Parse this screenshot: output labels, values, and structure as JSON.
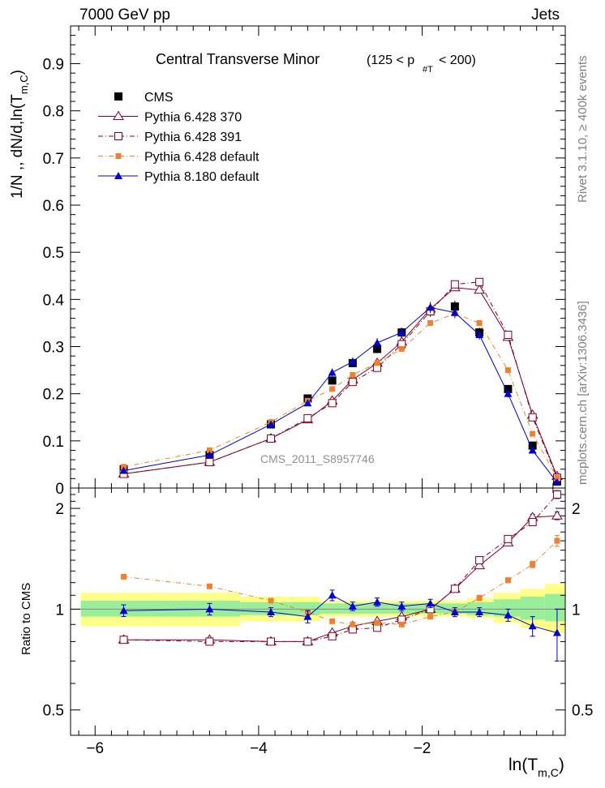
{
  "header": {
    "energy_label": "7000 GeV pp",
    "process_label": "Jets"
  },
  "side_labels": {
    "rivet_info": "Rivet 3.1.10, ≥ 400k events",
    "mcplots_info": "mcplots.cern.ch [arXiv:1306.3436]"
  },
  "chart_data": {
    "type": "line",
    "title": "Central Transverse Minor",
    "title_cut": "(125 < p",
    "title_cut_sub": "#T",
    "title_cut_end": " < 200)",
    "analysis_id": "CMS_2011_S8957746",
    "xlabel": "ln(T",
    "xlabel_sub": "m,C",
    "xlabel_end": ")",
    "ylabel_main": "1/N ,, dN/d,ln(T",
    "ylabel_main_sub": "m,C",
    "ylabel_main_end": ")",
    "ylabel_ratio": "Ratio to CMS",
    "xlim": [
      -6.3,
      -0.25
    ],
    "ylim_main": [
      0,
      0.98
    ],
    "ylim_ratio": [
      0.42,
      2.3
    ],
    "ratio_log_scale": true,
    "x_ticks": [
      -6,
      -4,
      -2
    ],
    "x_tick_labels": [
      "−6",
      "−4",
      "−2"
    ],
    "y_ticks_main": [
      0,
      0.1,
      0.2,
      0.3,
      0.4,
      0.5,
      0.6,
      0.7,
      0.8,
      0.9
    ],
    "y_tick_labels_main": [
      "0",
      "0.1",
      "0.2",
      "0.3",
      "0.4",
      "0.5",
      "0.6",
      "0.7",
      "0.8",
      "0.9"
    ],
    "y_ticks_ratio": [
      0.5,
      1,
      2
    ],
    "y_tick_labels_ratio": [
      "0.5",
      "1",
      "2"
    ],
    "legend_placement": "top-left",
    "x": [
      -5.65,
      -4.6,
      -3.85,
      -3.4,
      -3.1,
      -2.85,
      -2.55,
      -2.25,
      -1.9,
      -1.6,
      -1.3,
      -0.95,
      -0.65,
      -0.35
    ],
    "band_outer": {
      "color": "#ffff88",
      "lo": [
        0.89,
        0.89,
        0.92,
        0.92,
        0.95,
        0.95,
        0.95,
        0.95,
        0.95,
        0.95,
        0.94,
        0.91,
        0.88,
        0.85
      ],
      "hi": [
        1.12,
        1.12,
        1.09,
        1.09,
        1.06,
        1.06,
        1.06,
        1.06,
        1.06,
        1.06,
        1.08,
        1.12,
        1.15,
        1.19
      ]
    },
    "band_inner": {
      "color": "#99ee99",
      "lo": [
        0.95,
        0.95,
        0.96,
        0.96,
        0.97,
        0.97,
        0.97,
        0.97,
        0.97,
        0.97,
        0.96,
        0.95,
        0.93,
        0.92
      ],
      "hi": [
        1.06,
        1.06,
        1.05,
        1.05,
        1.04,
        1.04,
        1.04,
        1.04,
        1.04,
        1.04,
        1.05,
        1.07,
        1.09,
        1.11
      ]
    },
    "series": [
      {
        "name": "CMS",
        "color": "#000000",
        "marker": "filled-square",
        "line": "none",
        "values": [
          0.04,
          0.07,
          0.135,
          0.19,
          0.228,
          0.265,
          0.295,
          0.33,
          0.375,
          0.385,
          0.33,
          0.21,
          0.09,
          0.015
        ],
        "errors": [
          0.003,
          0.004,
          0.005,
          0.006,
          0.007,
          0.008,
          0.009,
          0.01,
          0.012,
          0.012,
          0.01,
          0.008,
          0.005,
          0.003
        ],
        "ratio": [
          1,
          1,
          1,
          1,
          1,
          1,
          1,
          1,
          1,
          1,
          1,
          1,
          1,
          1
        ]
      },
      {
        "name": "Pythia 6.428 370",
        "color": "#800020",
        "marker": "open-triangle",
        "line": "solid",
        "values": [
          0.03,
          0.055,
          0.105,
          0.145,
          0.185,
          0.23,
          0.265,
          0.31,
          0.38,
          0.425,
          0.42,
          0.32,
          0.155,
          0.025
        ],
        "errors": [
          0,
          0,
          0,
          0,
          0,
          0,
          0,
          0,
          0,
          0,
          0,
          0,
          0,
          0
        ],
        "ratio": [
          0.81,
          0.81,
          0.8,
          0.8,
          0.85,
          0.89,
          0.92,
          0.95,
          1.0,
          1.15,
          1.35,
          1.58,
          1.88,
          1.9
        ],
        "ratio_errors": [
          0.01,
          0.01,
          0.01,
          0.01,
          0.01,
          0.01,
          0.01,
          0.01,
          0.01,
          0.01,
          0.02,
          0.03,
          0.04,
          0.05
        ]
      },
      {
        "name": "Pythia 6.428 391",
        "color": "#800020",
        "marker": "open-square",
        "line": "dash-dot",
        "values": [
          0.03,
          0.055,
          0.105,
          0.148,
          0.18,
          0.225,
          0.255,
          0.305,
          0.375,
          0.432,
          0.437,
          0.325,
          0.15,
          0.022
        ],
        "errors": [
          0,
          0,
          0,
          0,
          0,
          0,
          0,
          0,
          0,
          0,
          0,
          0,
          0,
          0
        ],
        "ratio": [
          0.81,
          0.8,
          0.8,
          0.8,
          0.83,
          0.87,
          0.88,
          0.93,
          1.0,
          1.15,
          1.4,
          1.62,
          1.82,
          2.2
        ],
        "ratio_errors": [
          0.01,
          0.01,
          0.01,
          0.01,
          0.01,
          0.01,
          0.01,
          0.01,
          0.01,
          0.01,
          0.02,
          0.03,
          0.04,
          0.06
        ]
      },
      {
        "name": "Pythia 6.428 default",
        "color": "#f08030",
        "marker": "filled-square-small",
        "line": "dash-dot",
        "values": [
          0.045,
          0.08,
          0.14,
          0.185,
          0.21,
          0.24,
          0.265,
          0.295,
          0.35,
          0.37,
          0.35,
          0.25,
          0.115,
          0.022
        ],
        "errors": [
          0,
          0,
          0,
          0,
          0,
          0,
          0,
          0,
          0,
          0,
          0,
          0,
          0,
          0
        ],
        "ratio": [
          1.25,
          1.17,
          1.06,
          0.98,
          0.92,
          0.9,
          0.91,
          0.9,
          0.95,
          0.98,
          1.08,
          1.22,
          1.36,
          1.6
        ],
        "ratio_errors": [
          0.01,
          0.01,
          0.01,
          0.01,
          0.01,
          0.01,
          0.01,
          0.01,
          0.01,
          0.01,
          0.02,
          0.02,
          0.03,
          0.06
        ]
      },
      {
        "name": "Pythia 8.180 default",
        "color": "#0000cc",
        "marker": "filled-triangle",
        "line": "solid",
        "values": [
          0.037,
          0.07,
          0.135,
          0.18,
          0.245,
          0.268,
          0.308,
          0.33,
          0.383,
          0.372,
          0.325,
          0.2,
          0.08,
          0.012
        ],
        "errors": [
          0.003,
          0.004,
          0.005,
          0.006,
          0.008,
          0.009,
          0.01,
          0.01,
          0.012,
          0.012,
          0.01,
          0.008,
          0.006,
          0.004
        ],
        "ratio": [
          0.99,
          1.0,
          0.98,
          0.95,
          1.1,
          1.02,
          1.05,
          1.02,
          1.04,
          0.98,
          0.98,
          0.96,
          0.89,
          0.85
        ],
        "ratio_errors": [
          0.04,
          0.04,
          0.03,
          0.04,
          0.04,
          0.03,
          0.03,
          0.03,
          0.03,
          0.03,
          0.03,
          0.04,
          0.06,
          0.15
        ]
      }
    ]
  }
}
